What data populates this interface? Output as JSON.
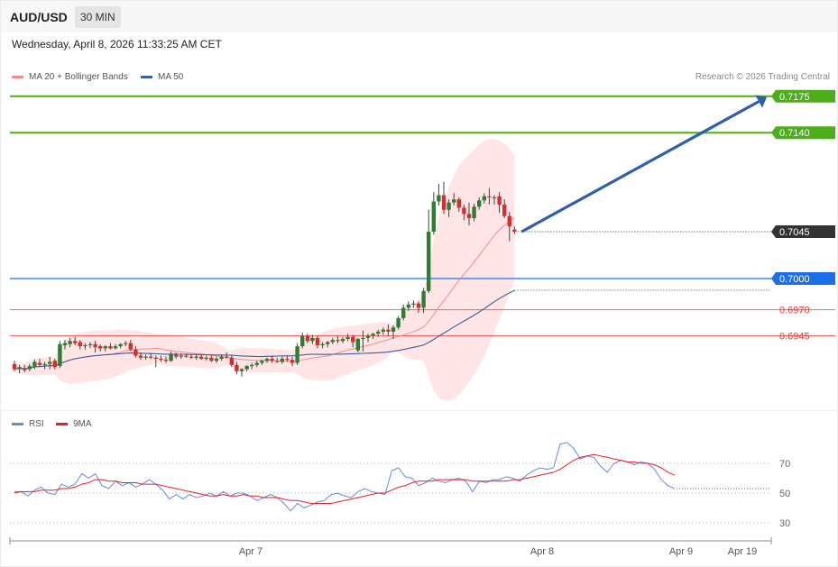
{
  "header": {
    "pair": "AUD/USD",
    "timeframe": "30 MIN",
    "datetime": "Wednesday, April 8, 2026 11:33:25 AM CET",
    "credit": "Research © 2026 Trading Central"
  },
  "legend": {
    "ma20": "MA 20 + Bollinger Bands",
    "ma50": "MA 50",
    "rsi": "RSI",
    "rsi_ma": "9MA"
  },
  "colors": {
    "up": "#2e7d32",
    "down": "#d32f2f",
    "bollinger_fill": "#ffe0e0",
    "ma20": "#f28c8c",
    "ma50": "#3b5e9c",
    "target_green": "#4caf1a",
    "pivot_blue": "#1a6fe8",
    "support_red": "#f06464",
    "arrow": "#2f5fa8",
    "rsi": "#6688dd",
    "rsi_ma": "#e52222",
    "current_price_bg": "#333333"
  },
  "chart_data": [
    {
      "type": "candlestick",
      "title": "AUD/USD 30 MIN",
      "x_ticks": [
        "Apr 7",
        "Apr 8",
        "Apr 9",
        "Apr 19"
      ],
      "ylim": [
        0.6885,
        0.7195
      ],
      "levels": [
        {
          "label": "0.7175",
          "value": 0.7175,
          "kind": "target"
        },
        {
          "label": "0.7140",
          "value": 0.714,
          "kind": "target"
        },
        {
          "label": "0.7045",
          "value": 0.7045,
          "kind": "current"
        },
        {
          "label": "0.7000",
          "value": 0.7,
          "kind": "pivot"
        },
        {
          "label": "0.6970",
          "value": 0.697,
          "kind": "support"
        },
        {
          "label": "0.6945",
          "value": 0.6945,
          "kind": "support"
        }
      ],
      "candles": [
        [
          0.6918,
          0.6921,
          0.6911,
          0.6913
        ],
        [
          0.6913,
          0.6917,
          0.6909,
          0.6915
        ],
        [
          0.6914,
          0.6917,
          0.691,
          0.6912
        ],
        [
          0.6913,
          0.6918,
          0.6911,
          0.6916
        ],
        [
          0.6915,
          0.6922,
          0.6913,
          0.692
        ],
        [
          0.6919,
          0.6923,
          0.6915,
          0.6917
        ],
        [
          0.6917,
          0.692,
          0.6913,
          0.6918
        ],
        [
          0.6918,
          0.6925,
          0.6913,
          0.692
        ],
        [
          0.6921,
          0.6923,
          0.6913,
          0.6915
        ],
        [
          0.6916,
          0.694,
          0.6914,
          0.6937
        ],
        [
          0.6936,
          0.6941,
          0.6932,
          0.6938
        ],
        [
          0.6937,
          0.6943,
          0.6934,
          0.694
        ],
        [
          0.694,
          0.6944,
          0.6936,
          0.6938
        ],
        [
          0.6939,
          0.6941,
          0.6932,
          0.6935
        ],
        [
          0.6935,
          0.6938,
          0.6932,
          0.6936
        ],
        [
          0.6936,
          0.6939,
          0.6933,
          0.6937
        ],
        [
          0.6937,
          0.694,
          0.6929,
          0.6934
        ],
        [
          0.6935,
          0.6937,
          0.693,
          0.6933
        ],
        [
          0.6933,
          0.6936,
          0.693,
          0.6935
        ],
        [
          0.6935,
          0.6938,
          0.6932,
          0.6933
        ],
        [
          0.6933,
          0.6937,
          0.6932,
          0.6935
        ],
        [
          0.6935,
          0.6938,
          0.6933,
          0.6937
        ],
        [
          0.6937,
          0.694,
          0.6935,
          0.6938
        ],
        [
          0.6938,
          0.6941,
          0.693,
          0.6932
        ],
        [
          0.6932,
          0.6935,
          0.6924,
          0.6926
        ],
        [
          0.6926,
          0.6929,
          0.6922,
          0.6924
        ],
        [
          0.6924,
          0.6927,
          0.6922,
          0.6925
        ],
        [
          0.6925,
          0.6928,
          0.6923,
          0.6924
        ],
        [
          0.6924,
          0.6926,
          0.6915,
          0.6923
        ],
        [
          0.6923,
          0.6926,
          0.692,
          0.6922
        ],
        [
          0.6922,
          0.6925,
          0.6919,
          0.6921
        ],
        [
          0.6921,
          0.693,
          0.692,
          0.6927
        ],
        [
          0.6927,
          0.6929,
          0.6923,
          0.6925
        ],
        [
          0.6925,
          0.6928,
          0.6923,
          0.6926
        ],
        [
          0.6926,
          0.6928,
          0.6924,
          0.6925
        ],
        [
          0.6925,
          0.6927,
          0.6923,
          0.6924
        ],
        [
          0.6924,
          0.6927,
          0.6922,
          0.6925
        ],
        [
          0.6925,
          0.6927,
          0.6922,
          0.6923
        ],
        [
          0.6923,
          0.6926,
          0.6921,
          0.6924
        ],
        [
          0.6924,
          0.6926,
          0.692,
          0.6921
        ],
        [
          0.6921,
          0.6925,
          0.6919,
          0.6923
        ],
        [
          0.6923,
          0.6927,
          0.6921,
          0.6925
        ],
        [
          0.6925,
          0.6929,
          0.6923,
          0.6924
        ],
        [
          0.6924,
          0.6926,
          0.6915,
          0.6917
        ],
        [
          0.6917,
          0.692,
          0.6908,
          0.6911
        ],
        [
          0.6911,
          0.6914,
          0.6906,
          0.6913
        ],
        [
          0.6913,
          0.6917,
          0.6911,
          0.6916
        ],
        [
          0.6916,
          0.6919,
          0.6913,
          0.6917
        ],
        [
          0.6917,
          0.6921,
          0.6915,
          0.6919
        ],
        [
          0.6919,
          0.6922,
          0.6917,
          0.6921
        ],
        [
          0.6921,
          0.6924,
          0.6919,
          0.6923
        ],
        [
          0.6923,
          0.6926,
          0.6919,
          0.6921
        ],
        [
          0.6921,
          0.6924,
          0.6919,
          0.692
        ],
        [
          0.692,
          0.6925,
          0.6918,
          0.6923
        ],
        [
          0.6923,
          0.6926,
          0.692,
          0.6922
        ],
        [
          0.6922,
          0.6925,
          0.6916,
          0.6919
        ],
        [
          0.6919,
          0.6938,
          0.6917,
          0.6935
        ],
        [
          0.6935,
          0.6948,
          0.6933,
          0.6945
        ],
        [
          0.6945,
          0.6947,
          0.6938,
          0.694
        ],
        [
          0.694,
          0.6946,
          0.6937,
          0.6943
        ],
        [
          0.6943,
          0.6945,
          0.6933,
          0.6936
        ],
        [
          0.6936,
          0.6939,
          0.6933,
          0.6937
        ],
        [
          0.6937,
          0.694,
          0.6934,
          0.6939
        ],
        [
          0.6939,
          0.6943,
          0.6937,
          0.6941
        ],
        [
          0.6941,
          0.6945,
          0.6938,
          0.694
        ],
        [
          0.694,
          0.6944,
          0.6938,
          0.6942
        ],
        [
          0.6942,
          0.6947,
          0.694,
          0.6944
        ],
        [
          0.6944,
          0.6946,
          0.6934,
          0.6939
        ],
        [
          0.6931,
          0.6943,
          0.6929,
          0.6942
        ],
        [
          0.6942,
          0.695,
          0.693,
          0.6943
        ],
        [
          0.6943,
          0.6947,
          0.6939,
          0.6945
        ],
        [
          0.6945,
          0.6948,
          0.6942,
          0.6947
        ],
        [
          0.6947,
          0.6951,
          0.6944,
          0.6949
        ],
        [
          0.6949,
          0.6953,
          0.6946,
          0.6951
        ],
        [
          0.6951,
          0.6956,
          0.6945,
          0.6949
        ],
        [
          0.6949,
          0.6955,
          0.6942,
          0.6953
        ],
        [
          0.6953,
          0.6964,
          0.6951,
          0.6962
        ],
        [
          0.6962,
          0.6975,
          0.696,
          0.6972
        ],
        [
          0.6972,
          0.6978,
          0.6969,
          0.6975
        ],
        [
          0.6975,
          0.6979,
          0.6972,
          0.6976
        ],
        [
          0.6976,
          0.6978,
          0.6967,
          0.6972
        ],
        [
          0.6972,
          0.6991,
          0.6967,
          0.6988
        ],
        [
          0.6988,
          0.7066,
          0.6986,
          0.7045
        ],
        [
          0.7045,
          0.7083,
          0.7042,
          0.7074
        ],
        [
          0.7074,
          0.7091,
          0.707,
          0.708
        ],
        [
          0.708,
          0.7093,
          0.7062,
          0.7066
        ],
        [
          0.7066,
          0.7076,
          0.7059,
          0.7073
        ],
        [
          0.7073,
          0.7082,
          0.707,
          0.7076
        ],
        [
          0.7076,
          0.7078,
          0.7064,
          0.7068
        ],
        [
          0.7068,
          0.7071,
          0.7056,
          0.7062
        ],
        [
          0.7062,
          0.7073,
          0.7051,
          0.7058
        ],
        [
          0.7058,
          0.7072,
          0.7055,
          0.7069
        ],
        [
          0.7069,
          0.7078,
          0.7066,
          0.7075
        ],
        [
          0.7075,
          0.7082,
          0.7072,
          0.7079
        ],
        [
          0.7079,
          0.7087,
          0.7071,
          0.7078
        ],
        [
          0.7078,
          0.708,
          0.7071,
          0.7077
        ],
        [
          0.7079,
          0.7083,
          0.7063,
          0.7071
        ],
        [
          0.7071,
          0.7076,
          0.7058,
          0.706
        ],
        [
          0.706,
          0.7064,
          0.7036,
          0.705
        ],
        [
          0.7047,
          0.705,
          0.7043,
          0.7045
        ]
      ],
      "projection": {
        "from": 0.7045,
        "to": 0.7175
      }
    },
    {
      "type": "line",
      "title": "RSI",
      "yticks": [
        70,
        50,
        30
      ],
      "ylim": [
        20,
        90
      ],
      "series": [
        {
          "name": "RSI",
          "values": [
            51,
            51,
            48,
            52,
            54,
            50,
            49,
            56,
            54,
            56,
            63,
            60,
            63,
            55,
            53,
            58,
            55,
            57,
            54,
            56,
            59,
            56,
            52,
            46,
            49,
            46,
            49,
            47,
            48,
            50,
            48,
            51,
            48,
            50,
            50,
            48,
            45,
            47,
            49,
            47,
            43,
            38,
            43,
            40,
            42,
            44,
            45,
            49,
            50,
            48,
            47,
            51,
            53,
            51,
            50,
            49,
            65,
            67,
            61,
            60,
            55,
            57,
            60,
            58,
            57,
            59,
            60,
            58,
            51,
            58,
            57,
            59,
            59,
            61,
            60,
            58,
            62,
            65,
            67,
            66,
            67,
            83,
            84,
            80,
            73,
            75,
            74,
            68,
            64,
            70,
            72,
            71,
            69,
            71,
            70,
            66,
            59,
            55,
            53
          ]
        },
        {
          "name": "9MA",
          "values": [
            50,
            51,
            51,
            51,
            52,
            52,
            52,
            53,
            53,
            54,
            56,
            57,
            59,
            59,
            58,
            58,
            57,
            57,
            57,
            56,
            56,
            56,
            55,
            54,
            53,
            52,
            51,
            50,
            49,
            48,
            48,
            49,
            48,
            48,
            49,
            48,
            48,
            47,
            47,
            47,
            46,
            45,
            45,
            44,
            43,
            43,
            43,
            43,
            44,
            45,
            46,
            47,
            48,
            49,
            50,
            50,
            52,
            54,
            55,
            57,
            58,
            58,
            58,
            59,
            59,
            59,
            59,
            59,
            58,
            58,
            58,
            58,
            58,
            58,
            59,
            59,
            60,
            61,
            62,
            63,
            64,
            66,
            69,
            72,
            74,
            75,
            76,
            75,
            74,
            73,
            72,
            71,
            71,
            70,
            70,
            69,
            67,
            64,
            62
          ]
        }
      ]
    }
  ]
}
